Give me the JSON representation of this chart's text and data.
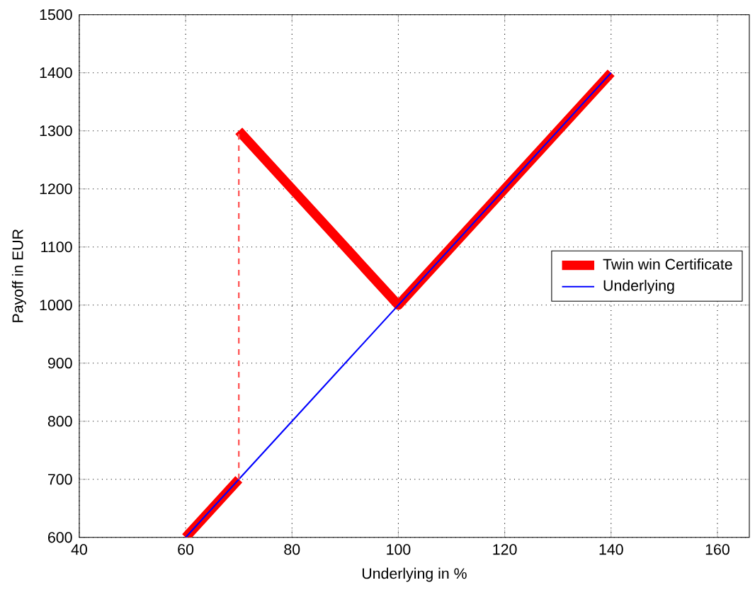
{
  "chart_data": {
    "type": "line",
    "xlabel": "Underlying in %",
    "ylabel": "Payoff in EUR",
    "xlim": [
      40,
      166
    ],
    "xticks": [
      40,
      60,
      80,
      100,
      120,
      140,
      160
    ],
    "ylim": [
      600,
      1500
    ],
    "yticks": [
      600,
      700,
      800,
      900,
      1000,
      1100,
      1200,
      1300,
      1400,
      1500
    ],
    "series": [
      {
        "name": "Twin win Certificate",
        "color": "#ff0000",
        "x": [
          60,
          70,
          null,
          70,
          100,
          140
        ],
        "values": [
          600,
          700,
          null,
          1300,
          1000,
          1400
        ]
      },
      {
        "name": "Underlying",
        "color": "#0000ff",
        "x": [
          60,
          140
        ],
        "values": [
          600,
          1400
        ]
      },
      {
        "color": "#ff5a5a",
        "x": [
          70,
          70
        ],
        "values": [
          700,
          1300
        ],
        "line_style": "dashed"
      }
    ],
    "grid": true,
    "legend": "right"
  }
}
